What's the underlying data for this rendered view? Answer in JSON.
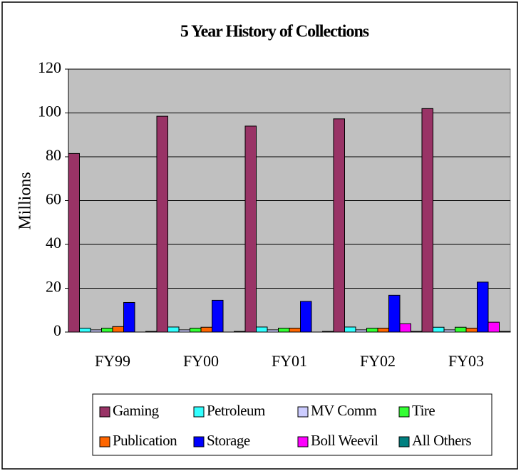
{
  "chart_data": {
    "type": "bar",
    "title": "5 Year History of Collections",
    "ylabel": "Millions",
    "categories": [
      "FY99",
      "FY00",
      "FY01",
      "FY02",
      "FY03"
    ],
    "series": [
      {
        "name": "Gaming",
        "color": "#993366",
        "values": [
          81.5,
          98.5,
          94,
          97.3,
          102
        ]
      },
      {
        "name": "Petroleum",
        "color": "#33ffff",
        "values": [
          1.8,
          2.3,
          2.3,
          2.3,
          2.2
        ]
      },
      {
        "name": "MV Comm",
        "color": "#ccccff",
        "values": [
          1,
          1,
          1,
          1,
          1
        ]
      },
      {
        "name": "Tire",
        "color": "#33ff33",
        "values": [
          1.8,
          1.8,
          1.8,
          1.8,
          2.2
        ]
      },
      {
        "name": "Publication",
        "color": "#ff6600",
        "values": [
          2.5,
          2.2,
          1.8,
          1.8,
          1.8
        ]
      },
      {
        "name": "Storage",
        "color": "#0000ff",
        "values": [
          13.5,
          14.5,
          14,
          16.8,
          22.8
        ]
      },
      {
        "name": "Boll Weevil",
        "color": "#ff00ff",
        "values": [
          0,
          0,
          0,
          3.8,
          4.5
        ]
      },
      {
        "name": "All Others",
        "color": "#008080",
        "values": [
          0.3,
          0.3,
          0.3,
          0.3,
          0.3
        ]
      }
    ],
    "ylim": [
      0,
      120
    ],
    "yticks": [
      0,
      20,
      40,
      60,
      80,
      100,
      120
    ],
    "grid": true,
    "legend": "bottom"
  }
}
